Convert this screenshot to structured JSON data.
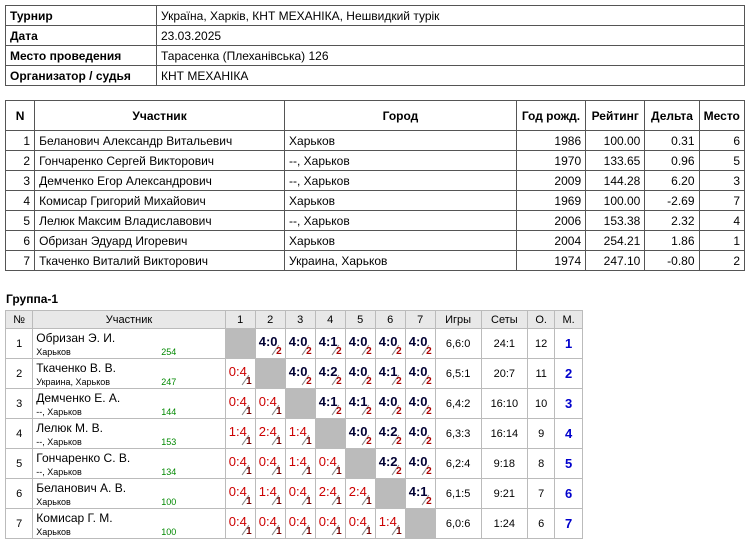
{
  "info": [
    [
      "Турнир",
      "Україна, Харків, КНТ МЕХАНІКА, Нешвидкий турік"
    ],
    [
      "Дата",
      "23.03.2025"
    ],
    [
      "Место проведения",
      "Тарасенка (Плеханівська) 126"
    ],
    [
      "Организатор / судья",
      "КНТ МЕХАНІКА"
    ]
  ],
  "participants": {
    "headers": [
      "N",
      "Участник",
      "Город",
      "Год рожд.",
      "Рейтинг",
      "Дельта",
      "Место"
    ],
    "rows": [
      [
        "1",
        "Беланович Александр Витальевич",
        "Харьков",
        "1986",
        "100.00",
        "0.31",
        "6"
      ],
      [
        "2",
        "Гончаренко Сергей Викторович",
        "--, Харьков",
        "1970",
        "133.65",
        "0.96",
        "5"
      ],
      [
        "3",
        "Демченко Егор Александрович",
        "--, Харьков",
        "2009",
        "144.28",
        "6.20",
        "3"
      ],
      [
        "4",
        "Комисар Григорий Михайович",
        "Харьков",
        "1969",
        "100.00",
        "-2.69",
        "7"
      ],
      [
        "5",
        "Лелюк Максим Владиславович",
        "--, Харьков",
        "2006",
        "153.38",
        "2.32",
        "4"
      ],
      [
        "6",
        "Обризан Эдуард Игоревич",
        "Харьков",
        "2004",
        "254.21",
        "1.86",
        "1"
      ],
      [
        "7",
        "Ткаченко Виталий Викторович",
        "Украина, Харьков",
        "1974",
        "247.10",
        "-0.80",
        "2"
      ]
    ]
  },
  "group": {
    "title": "Группа-1",
    "headers": [
      "№",
      "Участник",
      "1",
      "2",
      "3",
      "4",
      "5",
      "6",
      "7",
      "Игры",
      "Сеты",
      "О.",
      "М."
    ],
    "rows": [
      {
        "num": "1",
        "name": "Обризан Э. И.",
        "city": "Харьков",
        "rating": "254",
        "cells": [
          null,
          [
            "4:0",
            "2"
          ],
          [
            "4:0",
            "2"
          ],
          [
            "4:1",
            "2"
          ],
          [
            "4:0",
            "2"
          ],
          [
            "4:0",
            "2"
          ],
          [
            "4:0",
            "2"
          ]
        ],
        "games": "6,6:0",
        "sets": "24:1",
        "points": "12",
        "place": "1"
      },
      {
        "num": "2",
        "name": "Ткаченко В. В.",
        "city": "Украина, Харьков",
        "rating": "247",
        "cells": [
          [
            "0:4",
            "1"
          ],
          null,
          [
            "4:0",
            "2"
          ],
          [
            "4:2",
            "2"
          ],
          [
            "4:0",
            "2"
          ],
          [
            "4:1",
            "2"
          ],
          [
            "4:0",
            "2"
          ]
        ],
        "games": "6,5:1",
        "sets": "20:7",
        "points": "11",
        "place": "2"
      },
      {
        "num": "3",
        "name": "Демченко Е. А.",
        "city": "--, Харьков",
        "rating": "144",
        "cells": [
          [
            "0:4",
            "1"
          ],
          [
            "0:4",
            "1"
          ],
          null,
          [
            "4:1",
            "2"
          ],
          [
            "4:1",
            "2"
          ],
          [
            "4:0",
            "2"
          ],
          [
            "4:0",
            "2"
          ]
        ],
        "games": "6,4:2",
        "sets": "16:10",
        "points": "10",
        "place": "3"
      },
      {
        "num": "4",
        "name": "Лелюк М. В.",
        "city": "--, Харьков",
        "rating": "153",
        "cells": [
          [
            "1:4",
            "1"
          ],
          [
            "2:4",
            "1"
          ],
          [
            "1:4",
            "1"
          ],
          null,
          [
            "4:0",
            "2"
          ],
          [
            "4:2",
            "2"
          ],
          [
            "4:0",
            "2"
          ]
        ],
        "games": "6,3:3",
        "sets": "16:14",
        "points": "9",
        "place": "4"
      },
      {
        "num": "5",
        "name": "Гончаренко С. В.",
        "city": "--, Харьков",
        "rating": "134",
        "cells": [
          [
            "0:4",
            "1"
          ],
          [
            "0:4",
            "1"
          ],
          [
            "1:4",
            "1"
          ],
          [
            "0:4",
            "1"
          ],
          null,
          [
            "4:2",
            "2"
          ],
          [
            "4:0",
            "2"
          ]
        ],
        "games": "6,2:4",
        "sets": "9:18",
        "points": "8",
        "place": "5"
      },
      {
        "num": "6",
        "name": "Беланович А. В.",
        "city": "Харьков",
        "rating": "100",
        "cells": [
          [
            "0:4",
            "1"
          ],
          [
            "1:4",
            "1"
          ],
          [
            "0:4",
            "1"
          ],
          [
            "2:4",
            "1"
          ],
          [
            "2:4",
            "1"
          ],
          null,
          [
            "4:1",
            "2"
          ]
        ],
        "games": "6,1:5",
        "sets": "9:21",
        "points": "7",
        "place": "6"
      },
      {
        "num": "7",
        "name": "Комисар Г. М.",
        "city": "Харьков",
        "rating": "100",
        "cells": [
          [
            "0:4",
            "1"
          ],
          [
            "0:4",
            "1"
          ],
          [
            "0:4",
            "1"
          ],
          [
            "0:4",
            "1"
          ],
          [
            "0:4",
            "1"
          ],
          [
            "1:4",
            "1"
          ],
          null
        ],
        "games": "6,0:6",
        "sets": "1:24",
        "points": "6",
        "place": "7"
      }
    ]
  }
}
